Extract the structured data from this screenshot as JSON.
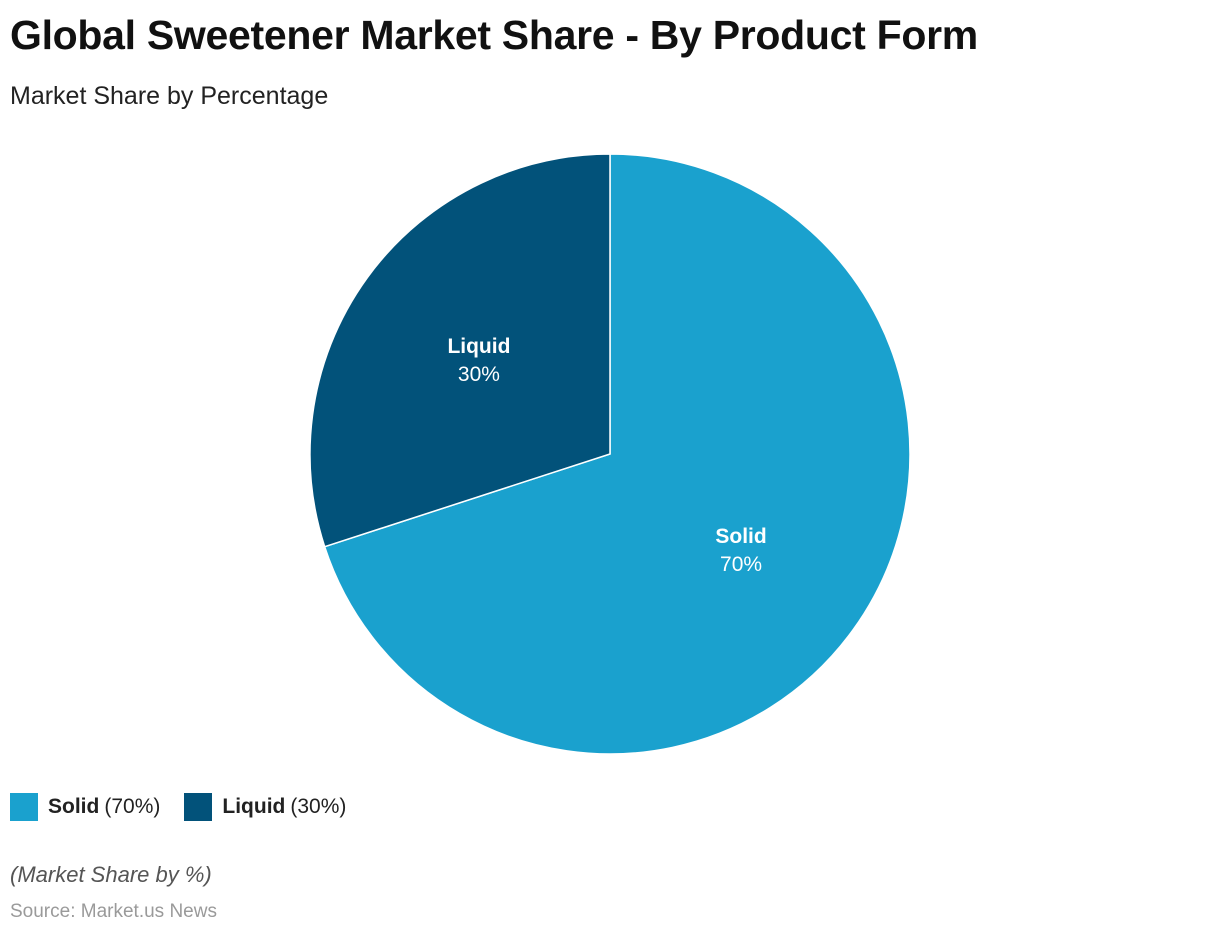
{
  "chart_data": {
    "type": "pie",
    "title": "Global Sweetener Market Share - By Product Form",
    "subtitle": "Market Share by Percentage",
    "slices": [
      {
        "name": "Solid",
        "value": 70,
        "value_label": "70%",
        "legend_value": "(70%)",
        "color": "#1aa1ce"
      },
      {
        "name": "Liquid",
        "value": 30,
        "value_label": "30%",
        "legend_value": "(30%)",
        "color": "#02527a"
      }
    ],
    "legend_placement": "bottom-left",
    "note": "(Market Share by %)",
    "source": "Source: Market.us News"
  }
}
